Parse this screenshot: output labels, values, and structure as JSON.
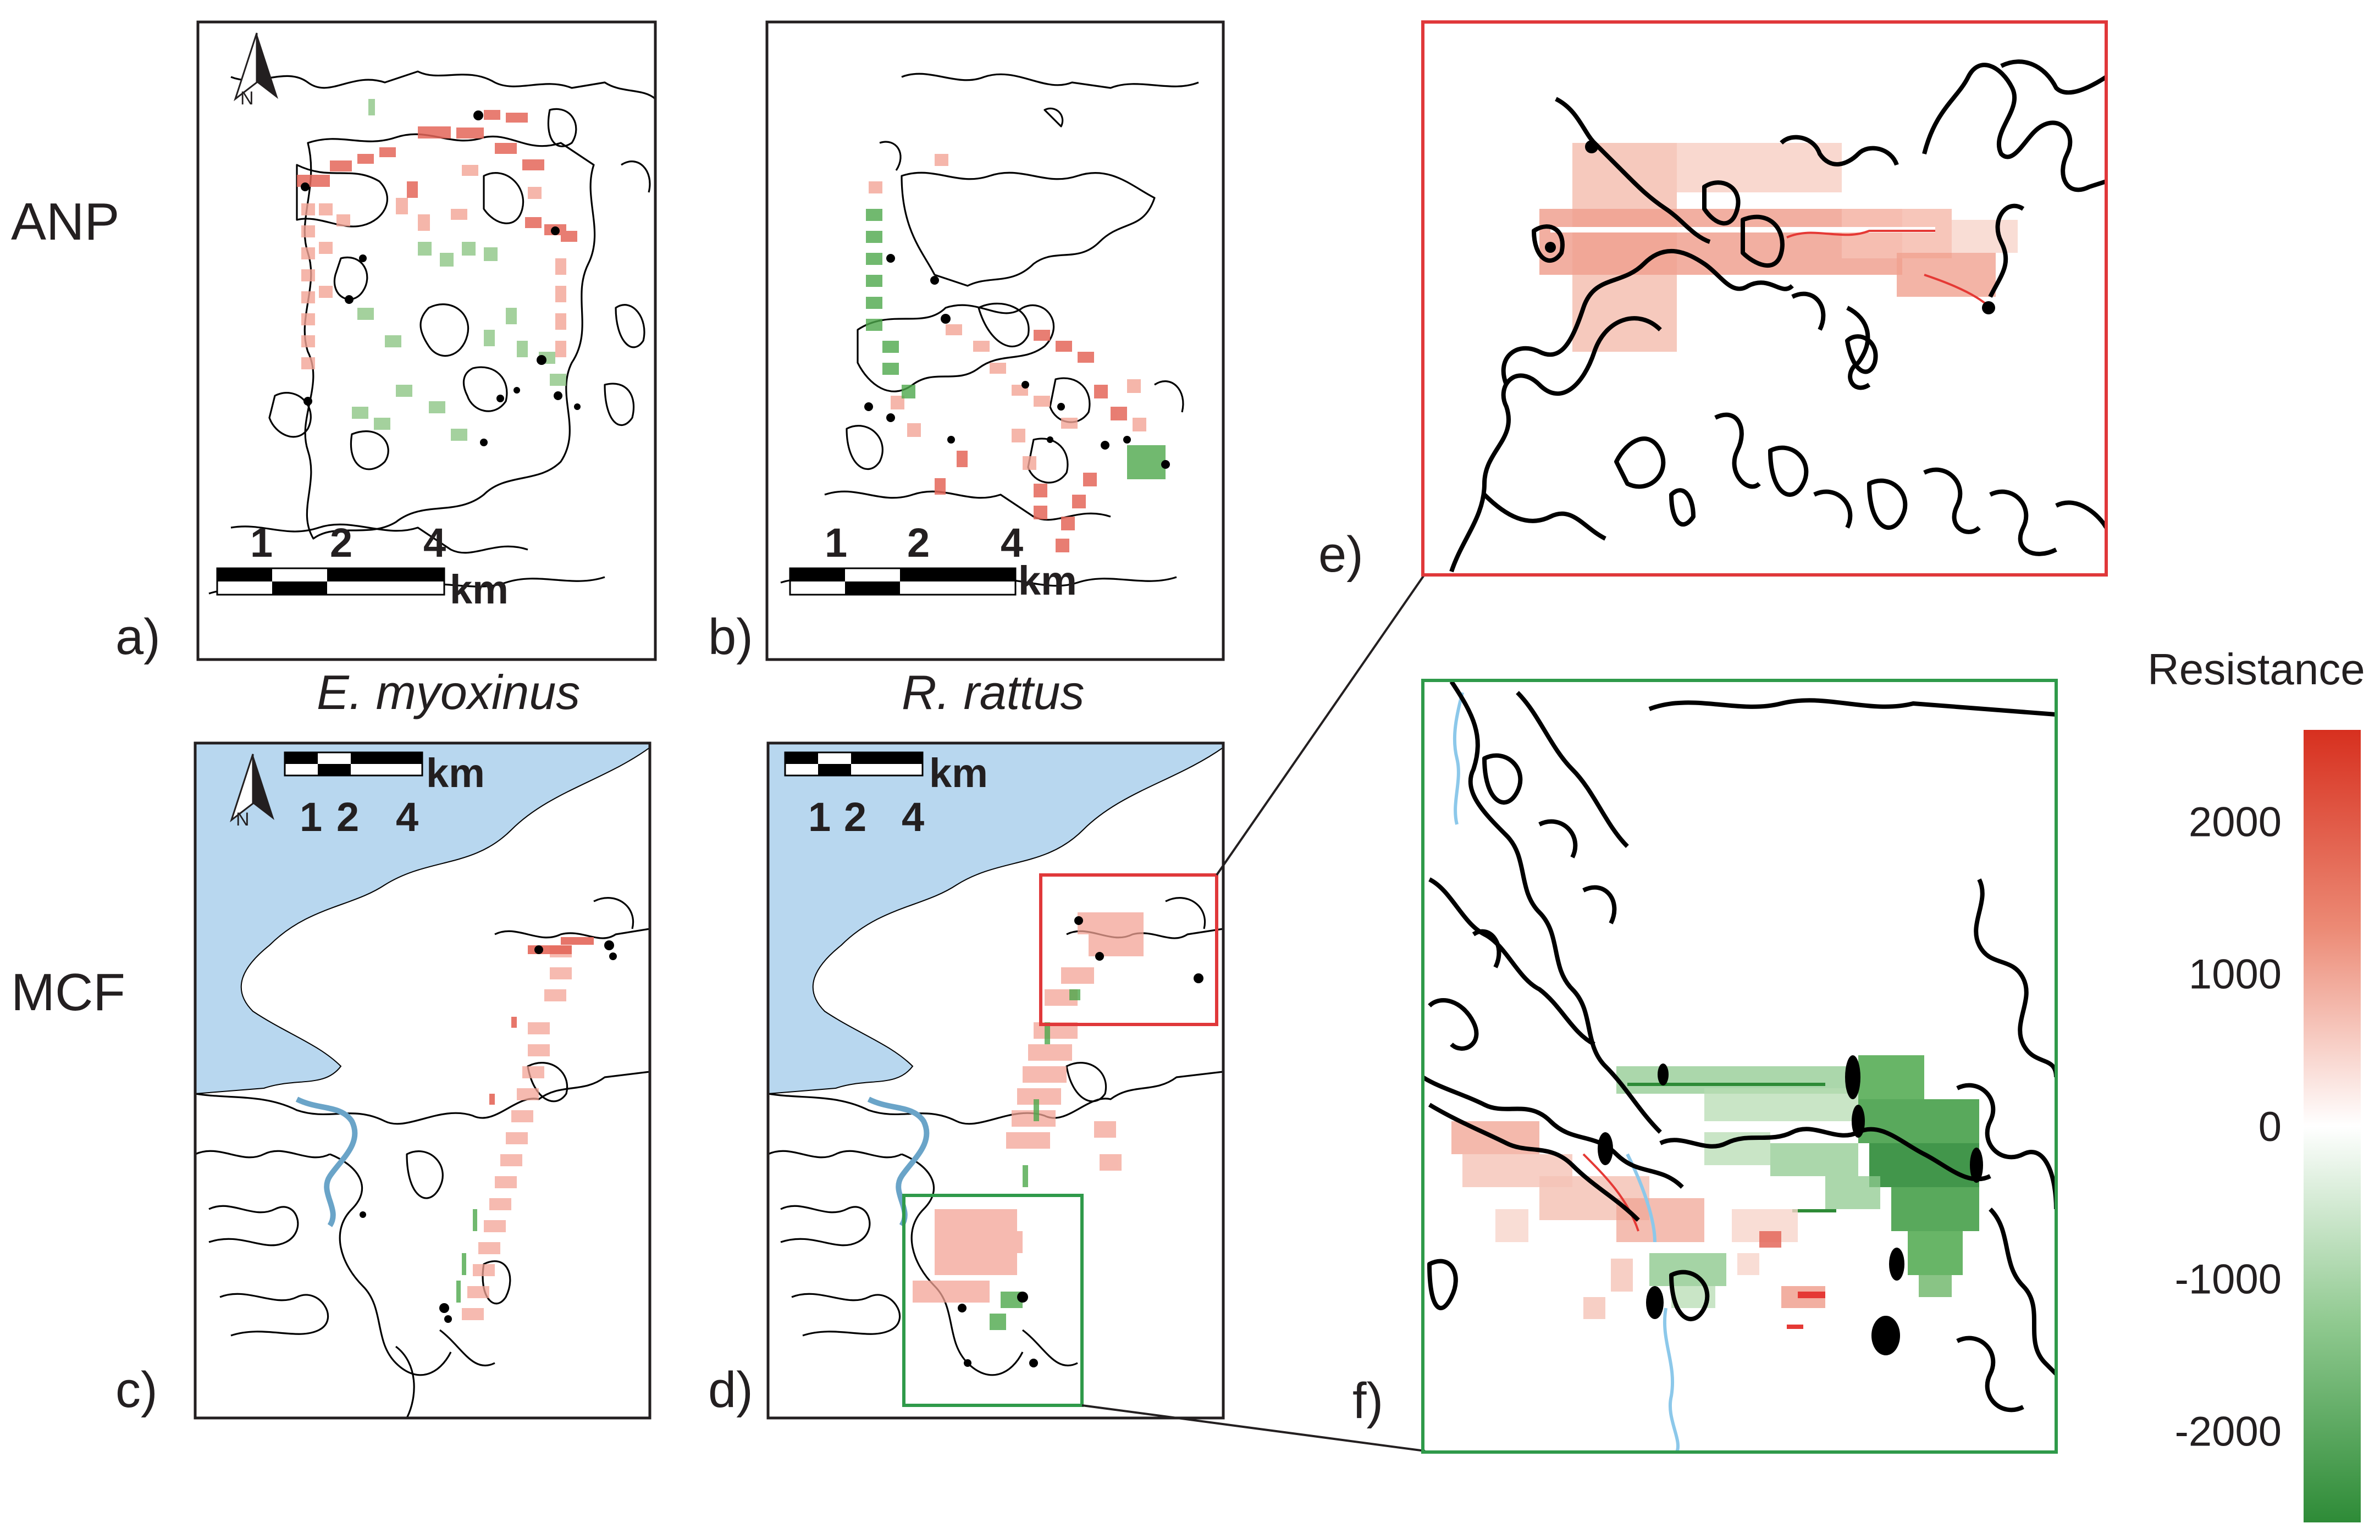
{
  "rows": {
    "top": "ANP",
    "bottom": "MCF"
  },
  "panels": {
    "a": "a)",
    "b": "b)",
    "c": "c)",
    "d": "d)",
    "e": "e)",
    "f": "f)"
  },
  "species": {
    "left": "E. myoxinus",
    "right": "R. rattus"
  },
  "scalebar": {
    "t1": "1",
    "t2": "2",
    "t4": "4",
    "unit": "km"
  },
  "north_arrow": {
    "label": "N",
    "icon": "north-arrow-icon"
  },
  "legend": {
    "title": "Resistance",
    "ticks": [
      "2000",
      "1000",
      "0",
      "-1000",
      "-2000"
    ],
    "tick_values": [
      2000,
      1000,
      0,
      -1000,
      -2000
    ],
    "range": [
      -2600,
      2600
    ],
    "colors": {
      "high": "#d7301f",
      "mid": "#ffffff",
      "low": "#2e8b37"
    }
  },
  "colors": {
    "water": "#b8d7ef",
    "river": "#8cc8ea",
    "inset_e": "#e0383a",
    "inset_f": "#2f9a4a"
  }
}
